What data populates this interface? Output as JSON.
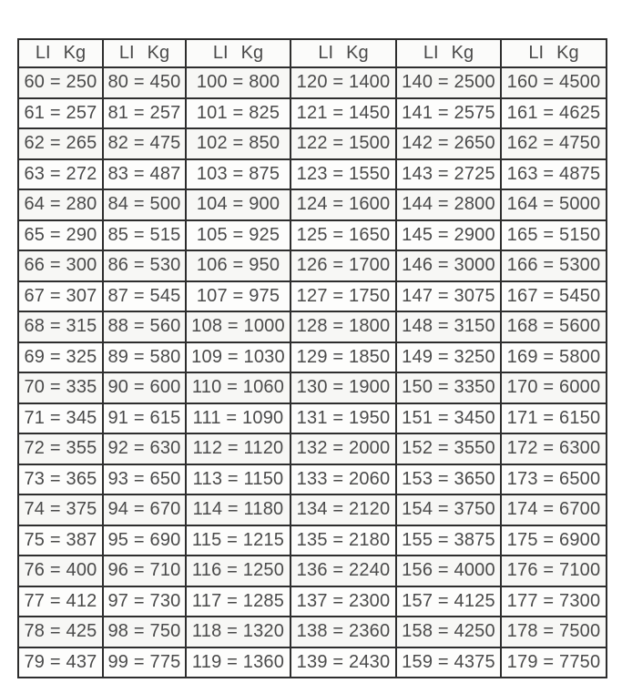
{
  "page": {
    "background_color": "#ffffff",
    "border_color": "#2e2e2e",
    "text_color": "#4a4a4a"
  },
  "table": {
    "header_li": "LI",
    "header_kg": "Kg",
    "row_count": 20,
    "columns": [
      {
        "name": "col-60-79",
        "cells": [
          "60 = 250",
          "61 = 257",
          "62 = 265",
          "63 = 272",
          "64 = 280",
          "65 = 290",
          "66 = 300",
          "67 = 307",
          "68 = 315",
          "69 = 325",
          "70 = 335",
          "71 = 345",
          "72 = 355",
          "73 = 365",
          "74 = 375",
          "75 = 387",
          "76 = 400",
          "77 = 412",
          "78 = 425",
          "79 = 437"
        ]
      },
      {
        "name": "col-80-99",
        "cells": [
          "80 = 450",
          "81 = 257",
          "82 = 475",
          "83 = 487",
          "84 = 500",
          "85 = 515",
          "86 = 530",
          "87 = 545",
          "88 = 560",
          "89 = 580",
          "90 = 600",
          "91 = 615",
          "92 = 630",
          "93 = 650",
          "94 = 670",
          "95 = 690",
          "96 = 710",
          "97 = 730",
          "98 = 750",
          "99 = 775"
        ]
      },
      {
        "name": "col-100-119",
        "cells": [
          "100 = 800",
          "101 = 825",
          "102 = 850",
          "103 = 875",
          "104 = 900",
          "105 = 925",
          "106 = 950",
          "107 = 975",
          "108 = 1000",
          "109 = 1030",
          "110 = 1060",
          "111 = 1090",
          "112 = 1120",
          "113 = 1150",
          "114 = 1180",
          "115 = 1215",
          "116 = 1250",
          "117 = 1285",
          "118 = 1320",
          "119 = 1360"
        ]
      },
      {
        "name": "col-120-139",
        "cells": [
          "120 = 1400",
          "121 = 1450",
          "122 = 1500",
          "123 = 1550",
          "124 = 1600",
          "125 = 1650",
          "126 = 1700",
          "127 = 1750",
          "128 = 1800",
          "129 = 1850",
          "130 = 1900",
          "131 = 1950",
          "132 = 2000",
          "133 = 2060",
          "134 = 2120",
          "135 = 2180",
          "136 = 2240",
          "137 = 2300",
          "138 = 2360",
          "139 = 2430"
        ]
      },
      {
        "name": "col-140-159",
        "cells": [
          "140 = 2500",
          "141 = 2575",
          "142 = 2650",
          "143 = 2725",
          "144 = 2800",
          "145 = 2900",
          "146 = 3000",
          "147 = 3075",
          "148 = 3150",
          "149 = 3250",
          "150 = 3350",
          "151 = 3450",
          "152 = 3550",
          "153 = 3650",
          "154 = 3750",
          "155 = 3875",
          "156 = 4000",
          "157 = 4125",
          "158 = 4250",
          "159 = 4375"
        ]
      },
      {
        "name": "col-160-179",
        "cells": [
          "160 = 4500",
          "161 = 4625",
          "162 = 4750",
          "163 = 4875",
          "164 = 5000",
          "165 = 5150",
          "166 = 5300",
          "167 = 5450",
          "168 = 5600",
          "169 = 5800",
          "170 = 6000",
          "171 = 6150",
          "172 = 6300",
          "173 = 6500",
          "174 = 6700",
          "175 = 6900",
          "176 = 7100",
          "177 = 7300",
          "178 = 7500",
          "179 = 7750"
        ]
      }
    ]
  }
}
